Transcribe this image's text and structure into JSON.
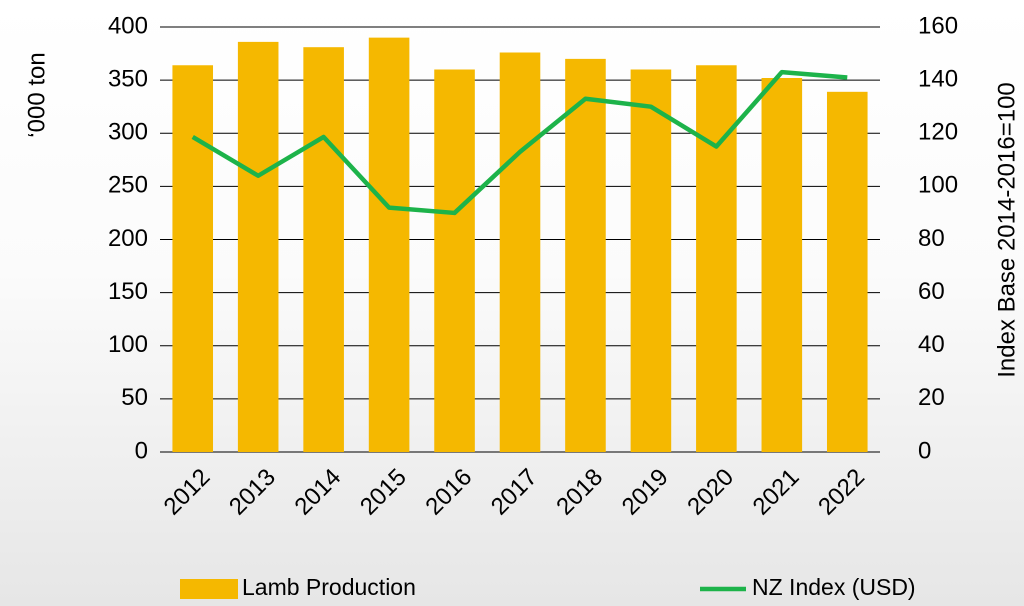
{
  "chart_data": {
    "type": "bar",
    "categories": [
      "2012",
      "2013",
      "2014",
      "2015",
      "2016",
      "2017",
      "2018",
      "2019",
      "2020",
      "2021",
      "2022"
    ],
    "series": [
      {
        "name": "Lamb Production",
        "type": "bar",
        "color": "#f5b800",
        "values": [
          364,
          386,
          381,
          390,
          360,
          376,
          370,
          360,
          364,
          352,
          339
        ]
      },
      {
        "name": "NZ Index (USD)",
        "type": "line",
        "axis": "y2",
        "color": "#1db34a",
        "values": [
          118.6,
          104,
          118.6,
          92,
          90,
          113,
          133,
          130,
          115,
          143,
          141
        ]
      }
    ],
    "ylabel": "‘000 ton",
    "y2label": "Index Base 2014-2016=100",
    "ylim": [
      0,
      400
    ],
    "yticks": [
      0,
      50,
      100,
      150,
      200,
      250,
      300,
      350,
      400
    ],
    "y2lim": [
      0,
      160
    ],
    "y2ticks": [
      0,
      20,
      40,
      60,
      80,
      100,
      120,
      140,
      160
    ],
    "grid": true,
    "legend": "bottom"
  }
}
